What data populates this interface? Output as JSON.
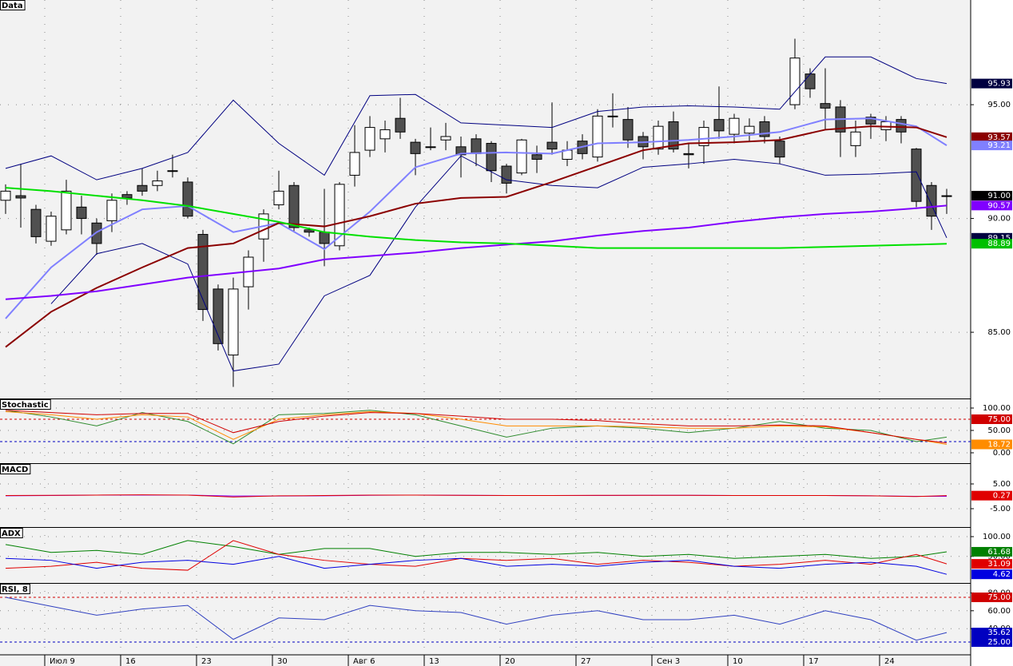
{
  "chart_data": [
    {
      "type": "candlestick",
      "title": "Data",
      "categories": [
        null,
        null,
        null,
        "Июл 9",
        null,
        null,
        null,
        null,
        "16",
        null,
        null,
        null,
        null,
        "23",
        null,
        null,
        null,
        null,
        "30",
        null,
        null,
        null,
        null,
        "Авг 6",
        null,
        null,
        null,
        null,
        "13",
        null,
        null,
        null,
        null,
        "20",
        null,
        null,
        null,
        null,
        "27",
        null,
        null,
        null,
        null,
        "Сен 3",
        null,
        null,
        null,
        null,
        "10",
        null,
        null,
        null,
        null,
        "17",
        null,
        null,
        null,
        null,
        "24",
        null,
        null,
        null,
        null
      ],
      "open": [
        90.8,
        91.0,
        90.4,
        89.0,
        89.5,
        90.5,
        89.8,
        89.9,
        91.05,
        91.45,
        91.45,
        92.1,
        91.6,
        89.3,
        86.9,
        84.0,
        87.0,
        89.1,
        90.6,
        91.45,
        89.5,
        89.4,
        88.8,
        91.9,
        93.0,
        93.5,
        94.4,
        93.35,
        93.15,
        93.45,
        93.15,
        93.5,
        93.3,
        92.3,
        92.0,
        92.8,
        93.35,
        92.6,
        93.4,
        92.7,
        94.5,
        94.35,
        93.6,
        93.05,
        94.25,
        92.85,
        93.2,
        94.35,
        93.7,
        93.75,
        94.25,
        93.4,
        95.0,
        96.35,
        95.05,
        94.9,
        93.2,
        94.45,
        93.9,
        94.35,
        93.05,
        91.45,
        91.0
      ],
      "high": [
        91.5,
        92.4,
        90.6,
        90.3,
        91.7,
        91.0,
        90.0,
        91.1,
        91.2,
        92.2,
        92.1,
        92.8,
        91.8,
        89.5,
        87.1,
        87.4,
        88.6,
        90.4,
        92.1,
        91.6,
        89.6,
        91.3,
        91.6,
        94.1,
        94.5,
        94.3,
        95.3,
        93.5,
        94.0,
        94.2,
        93.6,
        93.7,
        93.4,
        92.4,
        93.5,
        93.2,
        95.1,
        93.4,
        93.7,
        94.8,
        95.5,
        94.9,
        93.8,
        94.3,
        94.7,
        93.3,
        94.3,
        95.8,
        94.6,
        94.4,
        94.5,
        93.6,
        97.9,
        96.6,
        96.6,
        95.2,
        94.3,
        94.6,
        94.5,
        94.5,
        93.1,
        91.6,
        91.3
      ],
      "low": [
        90.2,
        89.6,
        88.9,
        88.8,
        89.3,
        89.3,
        88.4,
        89.4,
        90.6,
        91.0,
        91.2,
        91.8,
        90.0,
        85.5,
        84.2,
        82.6,
        86.0,
        88.1,
        90.4,
        89.4,
        89.2,
        87.9,
        88.6,
        91.4,
        92.7,
        92.9,
        93.5,
        91.9,
        93.0,
        93.0,
        91.8,
        92.3,
        91.6,
        91.1,
        91.9,
        92.0,
        92.8,
        92.3,
        92.6,
        92.5,
        94.0,
        93.1,
        92.6,
        92.8,
        92.9,
        92.2,
        92.4,
        93.5,
        93.3,
        93.4,
        93.3,
        92.4,
        94.8,
        95.3,
        93.9,
        92.7,
        92.7,
        93.5,
        93.4,
        93.3,
        90.5,
        89.5,
        90.2
      ],
      "close": [
        91.2,
        90.9,
        89.2,
        90.1,
        91.2,
        90.0,
        88.9,
        90.8,
        90.9,
        91.2,
        91.65,
        92.1,
        90.1,
        86.0,
        84.5,
        86.9,
        88.3,
        90.2,
        91.2,
        89.6,
        89.4,
        88.9,
        91.5,
        92.9,
        94.0,
        93.9,
        93.8,
        92.85,
        93.15,
        93.6,
        92.8,
        92.85,
        92.1,
        91.55,
        93.45,
        92.6,
        93.05,
        93.0,
        92.85,
        94.5,
        94.5,
        93.45,
        93.15,
        94.05,
        93.05,
        92.8,
        94.0,
        93.85,
        94.4,
        94.05,
        93.6,
        92.7,
        97.05,
        95.7,
        94.85,
        93.8,
        93.8,
        94.15,
        94.25,
        93.8,
        90.75,
        90.1,
        91.0
      ],
      "up_color": "#ffffff",
      "down_color": "#505050",
      "x": [
        0,
        3,
        6,
        9,
        12,
        15,
        18,
        21,
        24,
        27,
        30,
        33,
        36,
        39,
        42,
        45,
        48,
        51,
        54,
        57,
        60,
        62
      ],
      "series": [
        {
          "color": "#000080",
          "values": [
            92.2,
            92.75,
            91.7,
            92.2,
            92.9,
            95.2,
            93.3,
            91.9,
            95.4,
            95.45,
            94.2,
            94.1,
            94.0,
            94.7,
            94.9,
            94.95,
            94.9,
            94.8,
            97.1,
            97.1,
            96.15,
            95.93
          ]
        },
        {
          "color": "#8080ff",
          "values": [
            85.6,
            87.85,
            89.4,
            90.4,
            90.55,
            89.4,
            89.8,
            88.65,
            90.3,
            92.25,
            92.85,
            92.9,
            92.85,
            93.3,
            93.35,
            93.45,
            93.6,
            93.8,
            94.35,
            94.4,
            94.05,
            93.21
          ]
        },
        {
          "color": "#000080",
          "values": [
            null,
            86.25,
            88.45,
            88.9,
            88.0,
            83.3,
            83.6,
            86.6,
            87.5,
            90.5,
            92.75,
            91.7,
            91.45,
            91.35,
            92.25,
            92.4,
            92.6,
            92.4,
            91.9,
            91.95,
            92.05,
            89.15
          ]
        },
        {
          "color": "#8b0000",
          "values": [
            84.35,
            85.9,
            86.95,
            87.85,
            88.7,
            88.9,
            89.8,
            89.65,
            90.1,
            90.65,
            90.9,
            90.95,
            91.6,
            92.3,
            93.0,
            93.3,
            93.35,
            93.45,
            93.9,
            94.05,
            94.0,
            93.57
          ]
        },
        {
          "color": "#8000ff",
          "values": [
            86.45,
            86.6,
            86.8,
            87.1,
            87.4,
            87.6,
            87.8,
            88.2,
            88.35,
            88.5,
            88.7,
            88.85,
            89.0,
            89.25,
            89.45,
            89.6,
            89.85,
            90.05,
            90.2,
            90.3,
            90.45,
            90.57
          ]
        },
        {
          "color": "#00e000",
          "values": [
            91.35,
            91.2,
            91.0,
            90.8,
            90.55,
            90.2,
            89.85,
            89.4,
            89.2,
            89.05,
            88.95,
            88.9,
            88.8,
            88.7,
            88.7,
            88.7,
            88.7,
            88.7,
            88.75,
            88.8,
            88.85,
            88.89
          ]
        }
      ],
      "ylim": [
        82.09,
        99.6
      ],
      "yticks": [
        {
          "value": 85,
          "label": "85.00"
        },
        {
          "value": 90,
          "label": "90.00"
        },
        {
          "value": 95,
          "label": "95.00"
        }
      ],
      "markers": [
        {
          "value": 95.93,
          "label": "95.93",
          "color": "#000040"
        },
        {
          "value": 93.57,
          "label": "93.57",
          "color": "#8b0000"
        },
        {
          "value": 93.21,
          "label": "93.21",
          "color": "#8080ff"
        },
        {
          "value": 91,
          "label": "91.00",
          "color": "#000000"
        },
        {
          "value": 90.57,
          "label": "90.57",
          "color": "#8000ff"
        },
        {
          "value": 89.15,
          "label": "89.15",
          "color": "#000040"
        },
        {
          "value": 88.89,
          "label": "88.89",
          "color": "#00c000"
        }
      ]
    },
    {
      "type": "line",
      "title": "Stochastic",
      "x": [
        0,
        3,
        6,
        9,
        12,
        15,
        18,
        21,
        24,
        27,
        30,
        33,
        36,
        39,
        42,
        45,
        48,
        51,
        54,
        57,
        60,
        62
      ],
      "series": [
        {
          "color": "#2e8b2e",
          "values": [
            95,
            80,
            60,
            90,
            70,
            20,
            85,
            88,
            95,
            85,
            60,
            35,
            55,
            60,
            55,
            45,
            55,
            70,
            55,
            50,
            25,
            35
          ]
        },
        {
          "color": "#ff8c00",
          "values": [
            92,
            85,
            75,
            85,
            80,
            30,
            75,
            85,
            92,
            88,
            75,
            60,
            60,
            60,
            58,
            55,
            55,
            60,
            58,
            45,
            30,
            18.72
          ]
        },
        {
          "color": "#d00000",
          "values": [
            95,
            90,
            85,
            88,
            88,
            45,
            70,
            82,
            90,
            88,
            82,
            75,
            75,
            72,
            65,
            60,
            60,
            62,
            60,
            45,
            30,
            22
          ]
        }
      ],
      "ylim": [
        -23.2,
        119.6
      ],
      "yticks": [
        {
          "value": 0,
          "label": "0.00"
        },
        {
          "value": 50,
          "label": "50.00"
        },
        {
          "value": 100,
          "label": "100.00"
        }
      ],
      "levels": [
        {
          "value": 75,
          "color": "#d00000"
        },
        {
          "value": 25,
          "color": "#0000c0"
        }
      ],
      "markers": [
        {
          "value": 75,
          "label": "75.00",
          "color": "#d00000"
        },
        {
          "value": 18.72,
          "label": "18.72",
          "color": "#ff8c00"
        }
      ]
    },
    {
      "type": "line",
      "title": "MACD",
      "x": [
        0,
        3,
        6,
        9,
        12,
        15,
        18,
        21,
        24,
        27,
        30,
        33,
        36,
        39,
        42,
        45,
        48,
        51,
        54,
        57,
        60,
        62
      ],
      "series": [
        {
          "color": "#8000ff",
          "values": [
            0.2,
            0.3,
            0.5,
            0.5,
            0.5,
            0.1,
            0.1,
            0.2,
            0.4,
            0.5,
            0.4,
            0.3,
            0.3,
            0.3,
            0.4,
            0.4,
            0.3,
            0.3,
            0.3,
            0.2,
            0.0,
            0.0
          ]
        },
        {
          "color": "#e00000",
          "values": [
            0.3,
            0.4,
            0.5,
            0.6,
            0.5,
            -0.3,
            0.2,
            0.3,
            0.5,
            0.5,
            0.4,
            0.3,
            0.3,
            0.4,
            0.4,
            0.4,
            0.3,
            0.3,
            0.3,
            0.2,
            -0.1,
            0.27
          ]
        }
      ],
      "ylim": [
        -12.42,
        13.06
      ],
      "yticks": [
        {
          "value": -5,
          "label": "-5.00"
        },
        {
          "value": 5,
          "label": "5.00"
        }
      ],
      "markers": [
        {
          "value": 0.27,
          "label": "0.27",
          "color": "#e00000"
        }
      ]
    },
    {
      "type": "line",
      "title": "ADX",
      "x": [
        0,
        3,
        6,
        9,
        12,
        15,
        18,
        21,
        24,
        27,
        30,
        33,
        36,
        39,
        42,
        45,
        48,
        51,
        54,
        57,
        60,
        62
      ],
      "series": [
        {
          "color": "#008000",
          "values": [
            80,
            60,
            65,
            55,
            90,
            75,
            55,
            70,
            70,
            50,
            60,
            60,
            55,
            60,
            50,
            55,
            45,
            50,
            55,
            45,
            50,
            61.68
          ]
        },
        {
          "color": "#e00000",
          "values": [
            20,
            25,
            35,
            20,
            15,
            90,
            55,
            40,
            30,
            25,
            45,
            40,
            45,
            30,
            40,
            35,
            25,
            30,
            40,
            30,
            55,
            31.09
          ]
        },
        {
          "color": "#0000e0",
          "values": [
            45,
            40,
            20,
            35,
            40,
            30,
            50,
            20,
            30,
            40,
            45,
            25,
            30,
            25,
            35,
            40,
            25,
            20,
            30,
            35,
            25,
            4.62
          ]
        }
      ],
      "ylim": [
        -17.2,
        122.2
      ],
      "yticks": [
        {
          "value": 50,
          "label": "50.00"
        },
        {
          "value": 100,
          "label": "100.00"
        }
      ],
      "markers": [
        {
          "value": 61.68,
          "label": "61.68",
          "color": "#008000"
        },
        {
          "value": 31.09,
          "label": "31.09",
          "color": "#e00000"
        },
        {
          "value": 4.62,
          "label": "4.62",
          "color": "#0000e0"
        }
      ]
    },
    {
      "type": "line",
      "title": "RSI, 8",
      "x": [
        0,
        3,
        6,
        9,
        12,
        15,
        18,
        21,
        24,
        27,
        30,
        33,
        36,
        39,
        42,
        45,
        48,
        51,
        54,
        57,
        60,
        62
      ],
      "series": [
        {
          "color": "#3040c0",
          "values": [
            75,
            65,
            55,
            62,
            66,
            28,
            52,
            50,
            66,
            60,
            58,
            45,
            55,
            60,
            50,
            50,
            55,
            45,
            60,
            50,
            27,
            35.62
          ]
        }
      ],
      "ylim": [
        10.7,
        90.2
      ],
      "yticks": [
        {
          "value": 40,
          "label": "40.00"
        },
        {
          "value": 60,
          "label": "60.00"
        },
        {
          "value": 80,
          "label": "80.00"
        }
      ],
      "levels": [
        {
          "value": 75,
          "color": "#d00000"
        },
        {
          "value": 25,
          "color": "#0000c0"
        }
      ],
      "markers": [
        {
          "value": 75,
          "label": "75.00",
          "color": "#d00000"
        },
        {
          "value": 35.62,
          "label": "35.62",
          "color": "#0000c0"
        },
        {
          "value": 25,
          "label": "25.00",
          "color": "#0000c0"
        }
      ]
    }
  ]
}
